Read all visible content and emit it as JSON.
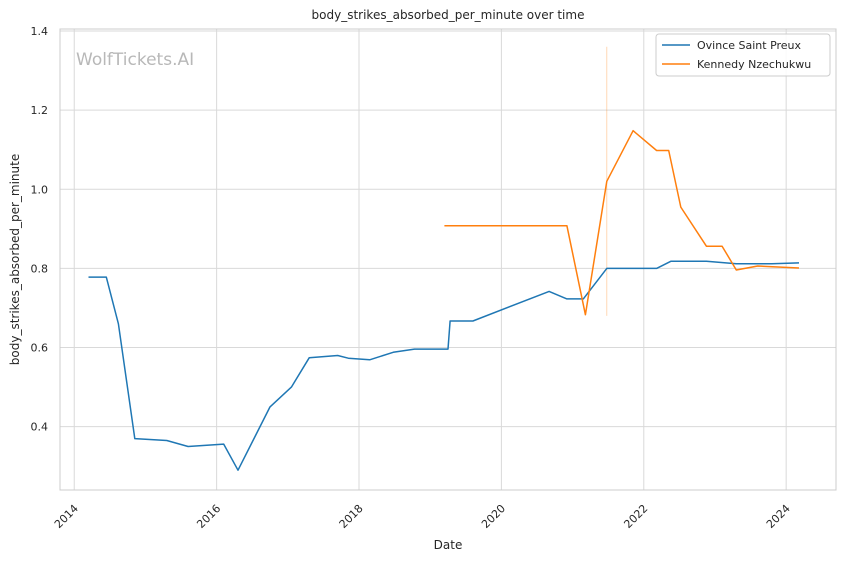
{
  "chart_data": {
    "type": "line",
    "title": "body_strikes_absorbed_per_minute over time",
    "xlabel": "Date",
    "ylabel": "body_strikes_absorbed_per_minute",
    "watermark": "WolfTickets.AI",
    "xlim": [
      2013.8,
      2024.7
    ],
    "ylim": [
      0.24,
      1.405
    ],
    "x_ticks": [
      2014,
      2016,
      2018,
      2020,
      2022,
      2024
    ],
    "y_ticks": [
      0.4,
      0.6,
      0.8,
      1.0,
      1.2,
      1.4
    ],
    "y_tick_labels": [
      "0.4",
      "0.6",
      "0.8",
      "1.0",
      "1.2",
      "1.4"
    ],
    "grid": true,
    "legend_position": "top-right",
    "series": [
      {
        "name": "Ovince Saint Preux",
        "color": "#1f77b4",
        "x": [
          2014.2,
          2014.45,
          2014.62,
          2014.85,
          2015.3,
          2015.6,
          2016.1,
          2016.3,
          2016.75,
          2017.05,
          2017.3,
          2017.7,
          2017.85,
          2018.15,
          2018.48,
          2018.78,
          2019.25,
          2019.28,
          2019.6,
          2020.67,
          2020.92,
          2021.15,
          2021.48,
          2021.98,
          2022.18,
          2022.38,
          2022.88,
          2023.3,
          2023.8,
          2024.18
        ],
        "y": [
          0.778,
          0.778,
          0.66,
          0.37,
          0.365,
          0.35,
          0.356,
          0.29,
          0.45,
          0.5,
          0.574,
          0.58,
          0.573,
          0.569,
          0.588,
          0.596,
          0.596,
          0.667,
          0.667,
          0.742,
          0.723,
          0.723,
          0.8,
          0.8,
          0.8,
          0.818,
          0.818,
          0.812,
          0.812,
          0.814
        ]
      },
      {
        "name": "Kennedy Nzechukwu",
        "color": "#ff7f0e",
        "x": [
          2019.2,
          2020.92,
          2021.18,
          2021.48,
          2021.85,
          2022.18,
          2022.35,
          2022.52,
          2022.88,
          2023.1,
          2023.3,
          2023.6,
          2024.18
        ],
        "y": [
          0.908,
          0.908,
          0.683,
          1.02,
          1.148,
          1.098,
          1.098,
          0.955,
          0.856,
          0.856,
          0.796,
          0.806,
          0.801
        ]
      }
    ],
    "marker_line": {
      "x": 2021.48,
      "y": [
        0.68,
        1.36
      ],
      "color": "#ff7f0e"
    }
  }
}
